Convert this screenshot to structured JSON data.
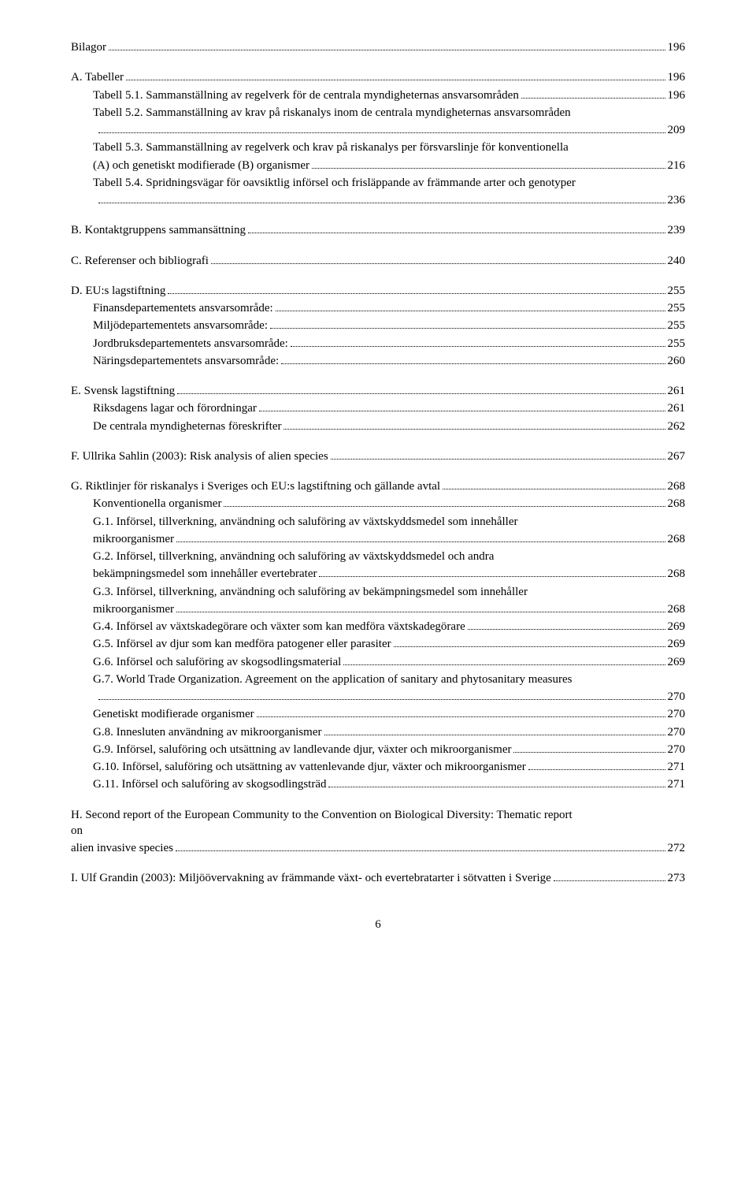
{
  "sections": [
    {
      "lines": [
        {
          "label": "Bilagor",
          "page": "196",
          "indent": 0
        }
      ]
    },
    {
      "lines": [
        {
          "label": "A. Tabeller",
          "page": "196",
          "indent": 0
        },
        {
          "label": "Tabell 5.1. Sammanställning av regelverk för de centrala myndigheternas ansvarsområden",
          "page": "196",
          "indent": 1
        },
        {
          "label": "Tabell 5.2. Sammanställning av krav på riskanalys inom de centrala myndigheternas ansvarsområden",
          "page": "",
          "indent": 1,
          "nodots": true
        },
        {
          "label": ".",
          "page": "209",
          "indent": 1,
          "blankdots": true
        },
        {
          "label": "Tabell 5.3. Sammanställning av regelverk och krav på riskanalys per försvarslinje för konventionella",
          "page": "",
          "indent": 1,
          "nodots": true
        },
        {
          "label": "(A) och genetiskt modifierade (B) organismer",
          "page": "216",
          "indent": 1
        },
        {
          "label": "Tabell 5.4. Spridningsvägar för oavsiktlig införsel och frisläppande av främmande arter och genotyper",
          "page": "",
          "indent": 1,
          "nodots": true
        },
        {
          "label": ".",
          "page": "236",
          "indent": 1,
          "blankdots": true
        }
      ]
    },
    {
      "lines": [
        {
          "label": "B. Kontaktgruppens sammansättning",
          "page": "239",
          "indent": 0
        }
      ]
    },
    {
      "lines": [
        {
          "label": "C. Referenser och bibliografi",
          "page": "240",
          "indent": 0
        }
      ]
    },
    {
      "lines": [
        {
          "label": "D. EU:s lagstiftning",
          "page": "255",
          "indent": 0
        },
        {
          "label": "Finansdepartementets ansvarsområde:",
          "page": "255",
          "indent": 1
        },
        {
          "label": "Miljödepartementets ansvarsområde:",
          "page": "255",
          "indent": 1
        },
        {
          "label": "Jordbruksdepartementets ansvarsområde:",
          "page": "255",
          "indent": 1
        },
        {
          "label": "Näringsdepartementets ansvarsområde:",
          "page": "260",
          "indent": 1
        }
      ]
    },
    {
      "lines": [
        {
          "label": "E. Svensk lagstiftning",
          "page": "261",
          "indent": 0
        },
        {
          "label": "Riksdagens lagar och förordningar",
          "page": "261",
          "indent": 1
        },
        {
          "label": "De centrala myndigheternas föreskrifter",
          "page": "262",
          "indent": 1
        }
      ]
    },
    {
      "lines": [
        {
          "label": "F. Ullrika Sahlin (2003): Risk analysis of alien species",
          "page": "267",
          "indent": 0
        }
      ]
    },
    {
      "lines": [
        {
          "label": "G. Riktlinjer för riskanalys i Sveriges och EU:s lagstiftning och gällande avtal",
          "page": "268",
          "indent": 0
        },
        {
          "label": "Konventionella organismer",
          "page": "268",
          "indent": 1
        },
        {
          "label": "G.1. Införsel, tillverkning, användning och saluföring av växtskyddsmedel som innehåller",
          "page": "",
          "indent": 2,
          "nodots": true
        },
        {
          "label": "mikroorganismer",
          "page": "268",
          "indent": 2
        },
        {
          "label": "G.2. Införsel, tillverkning, användning och saluföring av växtskyddsmedel och andra",
          "page": "",
          "indent": 2,
          "nodots": true
        },
        {
          "label": "bekämpningsmedel som innehåller evertebrater",
          "page": "268",
          "indent": 2
        },
        {
          "label": "G.3. Införsel, tillverkning, användning och saluföring av bekämpningsmedel som innehåller",
          "page": "",
          "indent": 2,
          "nodots": true
        },
        {
          "label": "mikroorganismer",
          "page": "268",
          "indent": 2
        },
        {
          "label": "G.4. Införsel av växtskadegörare och växter som kan medföra växtskadegörare",
          "page": "269",
          "indent": 2
        },
        {
          "label": "G.5. Införsel av djur som kan medföra patogener eller parasiter",
          "page": "269",
          "indent": 2
        },
        {
          "label": "G.6. Införsel och saluföring av skogsodlingsmaterial",
          "page": "269",
          "indent": 2
        },
        {
          "label": "G.7. World Trade Organization. Agreement on the application of sanitary and phytosanitary measures",
          "page": "",
          "indent": 2,
          "nodots": true
        },
        {
          "label": ".",
          "page": "270",
          "indent": 2,
          "blankdots": true
        },
        {
          "label": "Genetiskt modifierade organismer",
          "page": "270",
          "indent": 1
        },
        {
          "label": "G.8. Innesluten användning av mikroorganismer",
          "page": "270",
          "indent": 2
        },
        {
          "label": "G.9. Införsel, saluföring och utsättning av landlevande djur, växter och mikroorganismer",
          "page": "270",
          "indent": 2
        },
        {
          "label": "G.10. Införsel, saluföring och utsättning av vattenlevande djur, växter och mikroorganismer",
          "page": "271",
          "indent": 2
        },
        {
          "label": "G.11. Införsel och saluföring av skogsodlingsträd",
          "page": "271",
          "indent": 2
        }
      ]
    },
    {
      "lines": [
        {
          "label": "H. Second report of the European Community to the Convention on Biological Diversity: Thematic report on",
          "page": "",
          "indent": 0,
          "nodots": true
        },
        {
          "label": "alien invasive species",
          "page": "272",
          "indent": 0,
          "continuation": true
        }
      ]
    },
    {
      "lines": [
        {
          "label": "I. Ulf Grandin (2003): Miljöövervakning av främmande växt- och evertebratarter i sötvatten i Sverige",
          "page": "273",
          "indent": 0
        }
      ]
    }
  ],
  "pageNumber": "6"
}
